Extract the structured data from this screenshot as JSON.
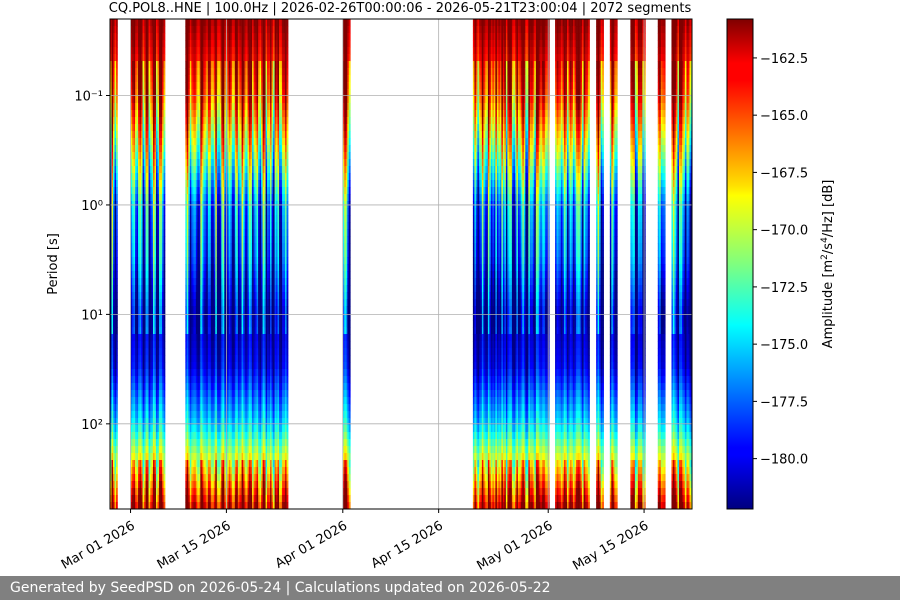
{
  "chart_data": {
    "type": "heatmap",
    "title": "CQ.POL8..HNE | 100.0Hz | 2026-02-26T00:00:06 - 2026-05-21T23:00:04 | 2072 segments",
    "xlabel": "",
    "ylabel": "Period [s]",
    "x_tick_labels": [
      "Mar 01 2026",
      "Mar 15 2026",
      "Apr 01 2026",
      "Apr 15 2026",
      "May 01 2026",
      "May 15 2026"
    ],
    "x_tick_dates": [
      "2026-03-01",
      "2026-03-15",
      "2026-04-01",
      "2026-04-15",
      "2026-05-01",
      "2026-05-15"
    ],
    "xlim": [
      "2026-02-26",
      "2026-05-22"
    ],
    "y_scale": "log",
    "y_inverted": true,
    "y_tick_labels": [
      "10⁻¹",
      "10⁰",
      "10¹",
      "10²"
    ],
    "y_tick_values": [
      0.1,
      1,
      10,
      100
    ],
    "ylim": [
      0.02,
      600
    ],
    "grid": true,
    "colormap": "jet",
    "colorbar": {
      "label": "Amplitude [m²/s⁴/Hz] [dB]",
      "tick_labels": [
        "−162.5",
        "−165.0",
        "−167.5",
        "−170.0",
        "−172.5",
        "−175.0",
        "−177.5",
        "−180.0"
      ],
      "tick_values": [
        -162.5,
        -165.0,
        -167.5,
        -170.0,
        -172.5,
        -175.0,
        -177.5,
        -180.0
      ],
      "range": [
        -182.2,
        -160.8
      ]
    },
    "data_intervals": [
      [
        "2026-02-26",
        "2026-02-27"
      ],
      [
        "2026-03-01",
        "2026-03-06"
      ],
      [
        "2026-03-09",
        "2026-03-17"
      ],
      [
        "2026-03-17",
        "2026-03-24"
      ],
      [
        "2026-04-01",
        "2026-04-02"
      ],
      [
        "2026-04-20",
        "2026-04-27"
      ],
      [
        "2026-04-27",
        "2026-05-01"
      ],
      [
        "2026-05-02",
        "2026-05-07"
      ],
      [
        "2026-05-08",
        "2026-05-09"
      ],
      [
        "2026-05-10",
        "2026-05-11"
      ],
      [
        "2026-05-13",
        "2026-05-15"
      ],
      [
        "2026-05-17",
        "2026-05-18"
      ],
      [
        "2026-05-19",
        "2026-05-22"
      ]
    ],
    "spectral_profile": [
      {
        "period": 0.02,
        "amplitude": -160.8
      },
      {
        "period": 0.03,
        "amplitude": -161.8
      },
      {
        "period": 0.1,
        "amplitude": -164.5
      },
      {
        "period": 0.3,
        "amplitude": -170.0
      },
      {
        "period": 1,
        "amplitude": -176.5
      },
      {
        "period": 3,
        "amplitude": -178.0
      },
      {
        "period": 10,
        "amplitude": -181.5
      },
      {
        "period": 30,
        "amplitude": -180.0
      },
      {
        "period": 100,
        "amplitude": -175.0
      },
      {
        "period": 300,
        "amplitude": -167.0
      },
      {
        "period": 600,
        "amplitude": -161.5
      }
    ]
  },
  "footer": {
    "text": "Generated by SeedPSD on 2026-05-24 | Calculations updated on 2026-05-22",
    "background": "#808080",
    "color": "#ffffff"
  }
}
